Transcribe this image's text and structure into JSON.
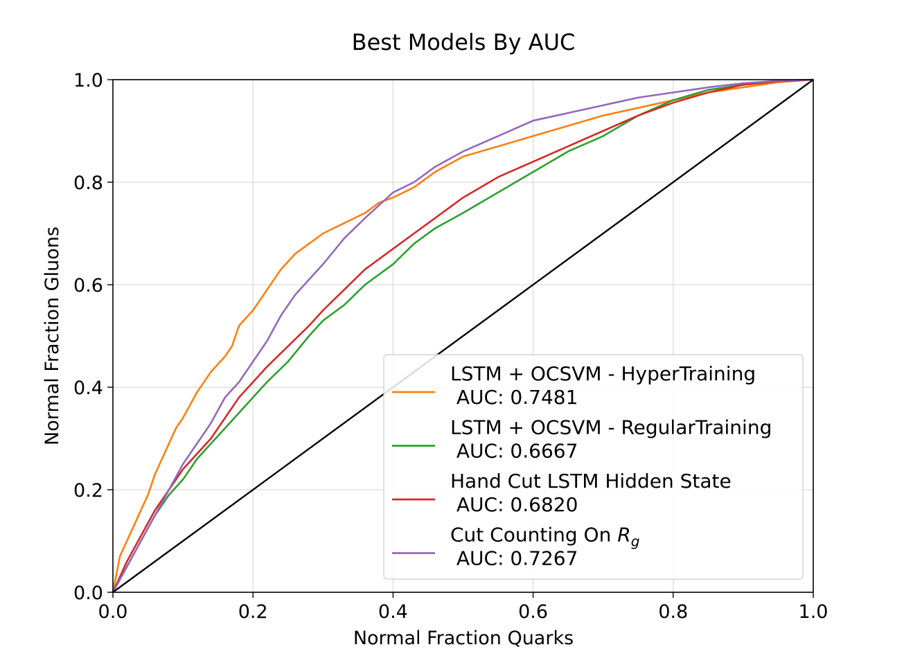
{
  "chart_data": {
    "type": "line",
    "title": "Best Models By AUC",
    "xlabel": "Normal Fraction Quarks",
    "ylabel": "Normal Fraction Gluons",
    "xlim": [
      0,
      1
    ],
    "ylim": [
      0,
      1
    ],
    "grid": true,
    "legend_position": "lower-right",
    "x_ticks": [
      "0.0",
      "0.2",
      "0.4",
      "0.6",
      "0.8",
      "1.0"
    ],
    "y_ticks": [
      "0.0",
      "0.2",
      "0.4",
      "0.6",
      "0.8",
      "1.0"
    ],
    "series": [
      {
        "name": "LSTM + OCSVM - HyperTraining",
        "auc_label": " AUC: 0.7481",
        "color": "#ff7f0e",
        "x": [
          0,
          0.01,
          0.02,
          0.03,
          0.04,
          0.05,
          0.06,
          0.07,
          0.08,
          0.09,
          0.1,
          0.12,
          0.14,
          0.16,
          0.17,
          0.18,
          0.2,
          0.22,
          0.24,
          0.26,
          0.28,
          0.3,
          0.33,
          0.36,
          0.38,
          0.4,
          0.43,
          0.46,
          0.5,
          0.55,
          0.6,
          0.65,
          0.7,
          0.75,
          0.8,
          0.85,
          0.9,
          0.95,
          1.0
        ],
        "y": [
          0,
          0.07,
          0.1,
          0.13,
          0.16,
          0.19,
          0.23,
          0.26,
          0.29,
          0.32,
          0.34,
          0.39,
          0.43,
          0.46,
          0.48,
          0.52,
          0.55,
          0.59,
          0.63,
          0.66,
          0.68,
          0.7,
          0.72,
          0.74,
          0.76,
          0.77,
          0.79,
          0.82,
          0.85,
          0.87,
          0.89,
          0.91,
          0.93,
          0.945,
          0.96,
          0.975,
          0.985,
          0.995,
          1.0
        ]
      },
      {
        "name": "LSTM + OCSVM - RegularTraining",
        "auc_label": " AUC: 0.6667",
        "color": "#2ca02c",
        "x": [
          0,
          0.02,
          0.04,
          0.06,
          0.08,
          0.1,
          0.12,
          0.14,
          0.16,
          0.18,
          0.2,
          0.22,
          0.25,
          0.28,
          0.3,
          0.33,
          0.36,
          0.4,
          0.43,
          0.46,
          0.5,
          0.55,
          0.6,
          0.65,
          0.7,
          0.75,
          0.8,
          0.85,
          0.9,
          0.95,
          1.0
        ],
        "y": [
          0,
          0.05,
          0.1,
          0.15,
          0.19,
          0.22,
          0.26,
          0.29,
          0.32,
          0.35,
          0.38,
          0.41,
          0.45,
          0.5,
          0.53,
          0.56,
          0.6,
          0.64,
          0.68,
          0.71,
          0.74,
          0.78,
          0.82,
          0.86,
          0.89,
          0.93,
          0.96,
          0.98,
          0.99,
          0.997,
          1.0
        ]
      },
      {
        "name": "Hand Cut LSTM Hidden State",
        "auc_label": " AUC: 0.6820",
        "color": "#d62728",
        "x": [
          0,
          0.02,
          0.04,
          0.06,
          0.08,
          0.1,
          0.12,
          0.14,
          0.16,
          0.18,
          0.2,
          0.22,
          0.25,
          0.28,
          0.3,
          0.33,
          0.36,
          0.4,
          0.43,
          0.46,
          0.5,
          0.55,
          0.6,
          0.65,
          0.7,
          0.75,
          0.8,
          0.85,
          0.9,
          0.95,
          1.0
        ],
        "y": [
          0,
          0.06,
          0.11,
          0.16,
          0.2,
          0.24,
          0.27,
          0.3,
          0.34,
          0.38,
          0.41,
          0.44,
          0.48,
          0.52,
          0.55,
          0.59,
          0.63,
          0.67,
          0.7,
          0.73,
          0.77,
          0.81,
          0.84,
          0.87,
          0.9,
          0.93,
          0.955,
          0.975,
          0.99,
          0.997,
          1.0
        ]
      },
      {
        "name": "Cut Counting On R_g",
        "name_prefix": "Cut Counting On ",
        "name_var": "R",
        "name_sub": "g",
        "auc_label": " AUC: 0.7267",
        "color": "#9467bd",
        "x": [
          0,
          0.02,
          0.04,
          0.06,
          0.08,
          0.1,
          0.12,
          0.14,
          0.16,
          0.18,
          0.2,
          0.22,
          0.24,
          0.26,
          0.28,
          0.3,
          0.33,
          0.36,
          0.4,
          0.43,
          0.46,
          0.5,
          0.55,
          0.6,
          0.65,
          0.7,
          0.75,
          0.8,
          0.85,
          0.9,
          0.95,
          1.0
        ],
        "y": [
          0,
          0.05,
          0.1,
          0.15,
          0.2,
          0.25,
          0.29,
          0.33,
          0.38,
          0.41,
          0.45,
          0.49,
          0.54,
          0.58,
          0.61,
          0.64,
          0.69,
          0.73,
          0.78,
          0.8,
          0.83,
          0.86,
          0.89,
          0.92,
          0.935,
          0.95,
          0.965,
          0.975,
          0.985,
          0.993,
          0.998,
          1.0
        ]
      },
      {
        "name": "",
        "color": "#000000",
        "x": [
          0,
          1
        ],
        "y": [
          0,
          1
        ]
      }
    ]
  }
}
